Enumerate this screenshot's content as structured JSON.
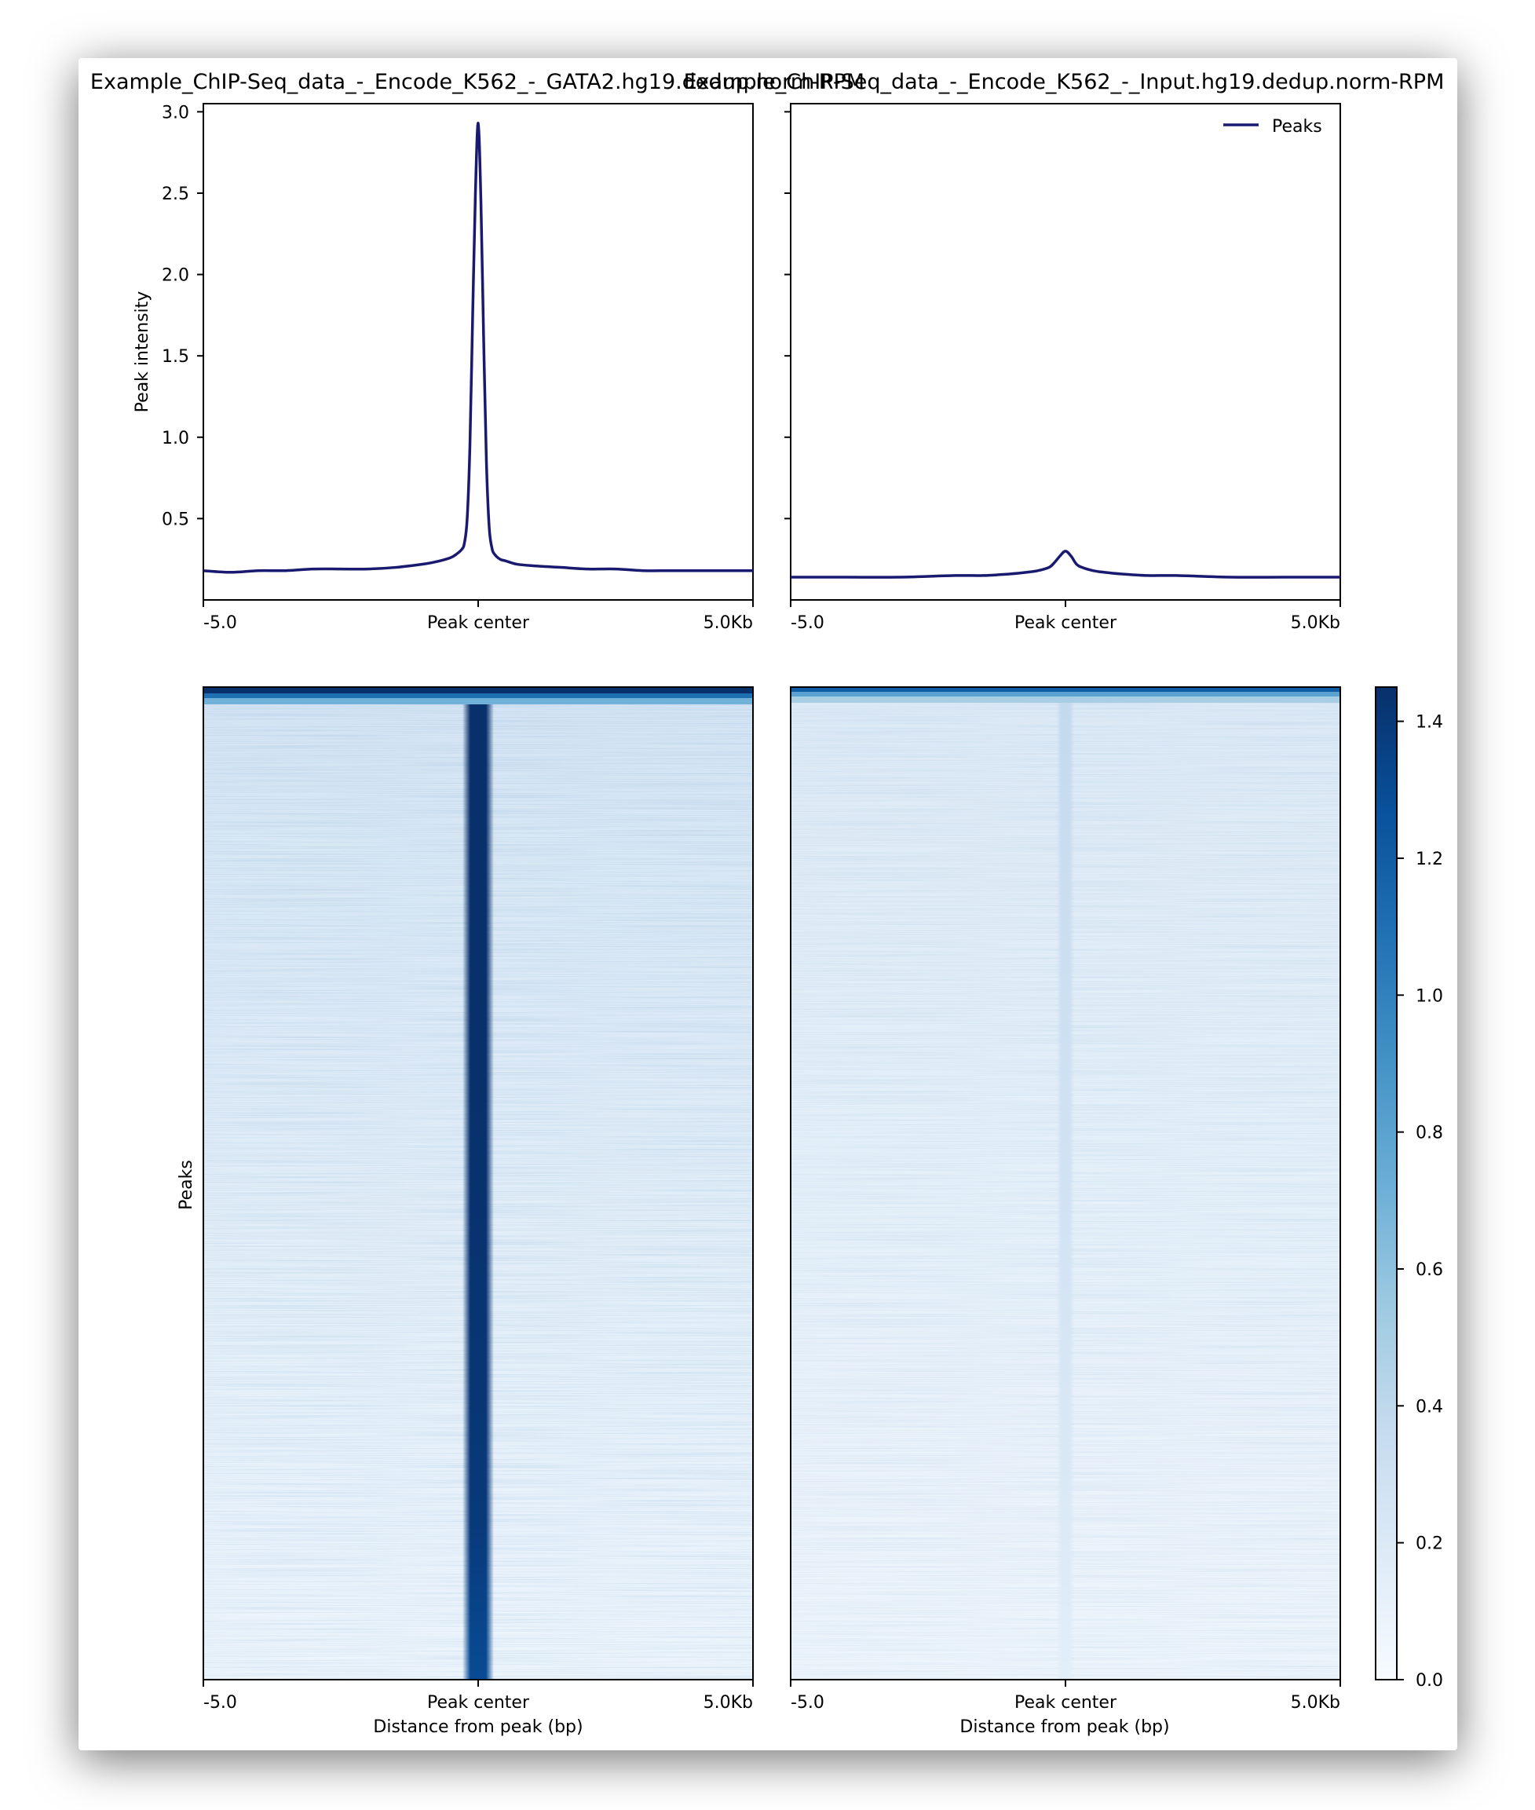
{
  "chart_data": {
    "type": "profile-heatmap",
    "panels": [
      {
        "title": "Example_ChIP-Seq_data_-_Encode_K562_-_GATA2.hg19.dedup.norm-RPM",
        "profile": {
          "type": "line",
          "ylabel": "Peak intensity",
          "x_tick_labels": [
            "-5.0",
            "Peak center",
            "5.0Kb"
          ],
          "x": [
            -5000,
            -4500,
            -4000,
            -3500,
            -3000,
            -2500,
            -2000,
            -1500,
            -1000,
            -700,
            -500,
            -400,
            -300,
            -250,
            -200,
            -150,
            -100,
            -50,
            0,
            50,
            100,
            150,
            200,
            250,
            300,
            400,
            500,
            700,
            1000,
            1500,
            2000,
            2500,
            3000,
            3500,
            4000,
            4500,
            5000
          ],
          "y": [
            0.18,
            0.17,
            0.18,
            0.18,
            0.19,
            0.19,
            0.19,
            0.2,
            0.22,
            0.24,
            0.26,
            0.28,
            0.31,
            0.35,
            0.5,
            0.95,
            1.75,
            2.5,
            2.93,
            2.45,
            1.6,
            0.85,
            0.45,
            0.32,
            0.28,
            0.25,
            0.24,
            0.22,
            0.21,
            0.2,
            0.19,
            0.19,
            0.18,
            0.18,
            0.18,
            0.18,
            0.18
          ]
        },
        "heatmap": {
          "ylabel": "Peaks",
          "xlabel": "Distance from peak (bp)",
          "x_tick_labels": [
            "-5.0",
            "Peak center",
            "5.0Kb"
          ],
          "background_levels": [
            0.26,
            0.22,
            0.19,
            0.16,
            0.13,
            0.1,
            0.07
          ],
          "center_levels": [
            1.45,
            1.45,
            1.45,
            1.44,
            1.42,
            1.4,
            1.3
          ]
        }
      },
      {
        "title": "Example_ChIP-Seq_data_-_Encode_K562_-_Input.hg19.dedup.norm-RPM",
        "profile": {
          "type": "line",
          "legend": "Peaks",
          "legend_position": "top-right",
          "x_tick_labels": [
            "-5.0",
            "Peak center",
            "5.0Kb"
          ],
          "x": [
            -5000,
            -4000,
            -3000,
            -2000,
            -1500,
            -1000,
            -700,
            -500,
            -300,
            -200,
            -100,
            0,
            100,
            200,
            300,
            500,
            700,
            1000,
            1500,
            2000,
            3000,
            4000,
            5000
          ],
          "y": [
            0.14,
            0.14,
            0.14,
            0.15,
            0.15,
            0.16,
            0.17,
            0.18,
            0.2,
            0.23,
            0.27,
            0.3,
            0.27,
            0.22,
            0.2,
            0.18,
            0.17,
            0.16,
            0.15,
            0.15,
            0.14,
            0.14,
            0.14
          ]
        },
        "heatmap": {
          "xlabel": "Distance from peak (bp)",
          "x_tick_labels": [
            "-5.0",
            "Peak center",
            "5.0Kb"
          ],
          "background_levels": [
            0.2,
            0.17,
            0.15,
            0.13,
            0.11,
            0.09,
            0.07
          ],
          "center_levels": [
            0.38,
            0.34,
            0.31,
            0.28,
            0.24,
            0.2,
            0.15
          ]
        }
      }
    ],
    "profile_ylim": [
      0.0,
      3.05
    ],
    "profile_y_ticks": [
      "0.5",
      "1.0",
      "1.5",
      "2.0",
      "2.5",
      "3.0"
    ],
    "colorbar": {
      "colormap": "Blues",
      "range": [
        0.0,
        1.45
      ],
      "ticks": [
        "0.0",
        "0.2",
        "0.4",
        "0.6",
        "0.8",
        "1.0",
        "1.2",
        "1.4"
      ]
    },
    "line_color": "#191970"
  }
}
